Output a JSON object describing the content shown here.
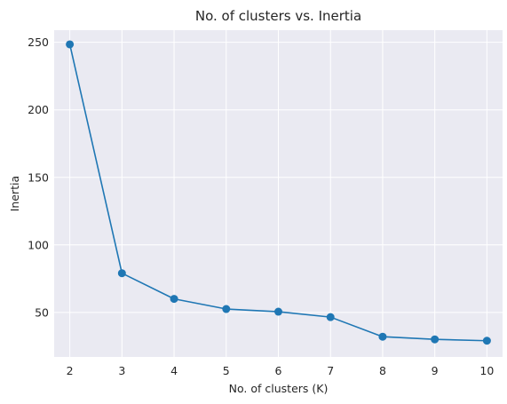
{
  "chart_data": {
    "type": "line",
    "title": "No. of clusters vs. Inertia",
    "xlabel": "No. of clusters (K)",
    "ylabel": "Inertia",
    "x": [
      2,
      3,
      4,
      5,
      6,
      7,
      8,
      9,
      10
    ],
    "series": [
      {
        "values": [
          248.5,
          79,
          60,
          52.5,
          50.5,
          46.5,
          32,
          30,
          29
        ],
        "color": "#1f77b4"
      }
    ],
    "xlim": [
      1.7,
      10.3
    ],
    "ylim": [
      17,
      259
    ],
    "xticks": [
      2,
      3,
      4,
      5,
      6,
      7,
      8,
      9,
      10
    ],
    "yticks": [
      50,
      100,
      150,
      200,
      250
    ],
    "grid": true,
    "background": "#eaeaf2",
    "grid_color": "#ffffff",
    "marker": "circle"
  }
}
